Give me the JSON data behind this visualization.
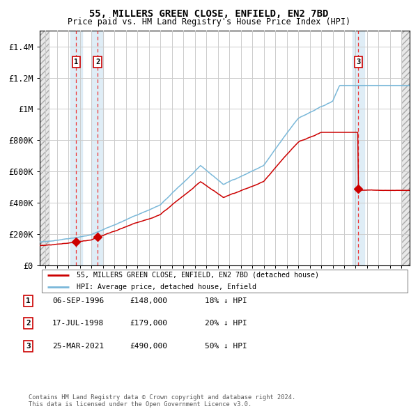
{
  "title1": "55, MILLERS GREEN CLOSE, ENFIELD, EN2 7BD",
  "title2": "Price paid vs. HM Land Registry's House Price Index (HPI)",
  "ylim": [
    0,
    1500000
  ],
  "yticks": [
    0,
    200000,
    400000,
    600000,
    800000,
    1000000,
    1200000,
    1400000
  ],
  "ytick_labels": [
    "£0",
    "£200K",
    "£400K",
    "£600K",
    "£800K",
    "£1M",
    "£1.2M",
    "£1.4M"
  ],
  "sale_dates_year": [
    1996.68,
    1998.54,
    2021.23
  ],
  "sale_prices": [
    148000,
    179000,
    490000
  ],
  "sale_labels": [
    "1",
    "2",
    "3"
  ],
  "hpi_color": "#7ab8d9",
  "price_color": "#cc0000",
  "vline_color": "#ee3333",
  "shade_color": "#daeaf5",
  "annotation_border": "#cc0000",
  "legend_label_price": "55, MILLERS GREEN CLOSE, ENFIELD, EN2 7BD (detached house)",
  "legend_label_hpi": "HPI: Average price, detached house, Enfield",
  "table_entries": [
    [
      "1",
      "06-SEP-1996",
      "£148,000",
      "18% ↓ HPI"
    ],
    [
      "2",
      "17-JUL-1998",
      "£179,000",
      "20% ↓ HPI"
    ],
    [
      "3",
      "25-MAR-2021",
      "£490,000",
      "50% ↓ HPI"
    ]
  ],
  "footer": "Contains HM Land Registry data © Crown copyright and database right 2024.\nThis data is licensed under the Open Government Licence v3.0.",
  "grid_color": "#cccccc",
  "xlim_left": 1993.5,
  "xlim_right": 2025.7,
  "hatch_left_end": 1994.3,
  "hatch_right_start": 2025.0
}
